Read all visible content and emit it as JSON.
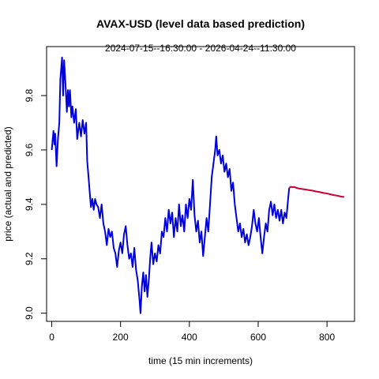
{
  "chart_data": {
    "type": "line",
    "title": "AVAX-USD (level data based prediction)",
    "subtitle": "2024-07-15--16:30:00  -  2026-04-24--11:30:00",
    "xlabel": "time (15 min increments)",
    "ylabel": "price (actual and predicted)",
    "xlim": [
      -15,
      880
    ],
    "ylim": [
      8.97,
      9.98
    ],
    "x_ticks": [
      0,
      200,
      400,
      600,
      800
    ],
    "y_ticks": [
      9.0,
      9.2,
      9.4,
      9.6,
      9.8
    ],
    "grid": false,
    "legend": "none",
    "series": [
      {
        "color": "#0000dd",
        "points": [
          [
            0,
            9.6
          ],
          [
            5,
            9.67
          ],
          [
            8,
            9.62
          ],
          [
            10,
            9.66
          ],
          [
            14,
            9.54
          ],
          [
            18,
            9.64
          ],
          [
            22,
            9.7
          ],
          [
            25,
            9.86
          ],
          [
            30,
            9.94
          ],
          [
            33,
            9.8
          ],
          [
            36,
            9.93
          ],
          [
            40,
            9.84
          ],
          [
            44,
            9.74
          ],
          [
            47,
            9.82
          ],
          [
            50,
            9.76
          ],
          [
            53,
            9.82
          ],
          [
            57,
            9.72
          ],
          [
            60,
            9.76
          ],
          [
            65,
            9.7
          ],
          [
            70,
            9.75
          ],
          [
            74,
            9.64
          ],
          [
            80,
            9.7
          ],
          [
            85,
            9.65
          ],
          [
            90,
            9.71
          ],
          [
            95,
            9.66
          ],
          [
            100,
            9.7
          ],
          [
            103,
            9.56
          ],
          [
            107,
            9.5
          ],
          [
            110,
            9.45
          ],
          [
            114,
            9.39
          ],
          [
            118,
            9.42
          ],
          [
            122,
            9.38
          ],
          [
            126,
            9.42
          ],
          [
            130,
            9.4
          ],
          [
            135,
            9.39
          ],
          [
            140,
            9.35
          ],
          [
            145,
            9.4
          ],
          [
            150,
            9.33
          ],
          [
            155,
            9.3
          ],
          [
            160,
            9.25
          ],
          [
            165,
            9.31
          ],
          [
            170,
            9.28
          ],
          [
            175,
            9.3
          ],
          [
            180,
            9.24
          ],
          [
            185,
            9.22
          ],
          [
            190,
            9.17
          ],
          [
            195,
            9.23
          ],
          [
            200,
            9.26
          ],
          [
            205,
            9.22
          ],
          [
            210,
            9.29
          ],
          [
            215,
            9.32
          ],
          [
            220,
            9.25
          ],
          [
            225,
            9.2
          ],
          [
            230,
            9.22
          ],
          [
            235,
            9.17
          ],
          [
            240,
            9.24
          ],
          [
            245,
            9.16
          ],
          [
            250,
            9.12
          ],
          [
            255,
            9.05
          ],
          [
            258,
            9.0
          ],
          [
            262,
            9.1
          ],
          [
            266,
            9.15
          ],
          [
            270,
            9.08
          ],
          [
            274,
            9.14
          ],
          [
            278,
            9.06
          ],
          [
            282,
            9.12
          ],
          [
            286,
            9.2
          ],
          [
            290,
            9.26
          ],
          [
            295,
            9.18
          ],
          [
            300,
            9.22
          ],
          [
            305,
            9.19
          ],
          [
            310,
            9.25
          ],
          [
            315,
            9.22
          ],
          [
            320,
            9.3
          ],
          [
            325,
            9.28
          ],
          [
            330,
            9.35
          ],
          [
            335,
            9.3
          ],
          [
            340,
            9.38
          ],
          [
            345,
            9.33
          ],
          [
            350,
            9.37
          ],
          [
            355,
            9.28
          ],
          [
            360,
            9.35
          ],
          [
            365,
            9.3
          ],
          [
            370,
            9.4
          ],
          [
            375,
            9.32
          ],
          [
            380,
            9.36
          ],
          [
            385,
            9.3
          ],
          [
            390,
            9.4
          ],
          [
            395,
            9.35
          ],
          [
            400,
            9.42
          ],
          [
            405,
            9.38
          ],
          [
            410,
            9.49
          ],
          [
            415,
            9.36
          ],
          [
            420,
            9.3
          ],
          [
            425,
            9.34
          ],
          [
            430,
            9.26
          ],
          [
            435,
            9.3
          ],
          [
            440,
            9.21
          ],
          [
            445,
            9.28
          ],
          [
            450,
            9.35
          ],
          [
            455,
            9.3
          ],
          [
            460,
            9.4
          ],
          [
            465,
            9.5
          ],
          [
            470,
            9.55
          ],
          [
            475,
            9.6
          ],
          [
            478,
            9.65
          ],
          [
            482,
            9.58
          ],
          [
            487,
            9.6
          ],
          [
            492,
            9.55
          ],
          [
            497,
            9.58
          ],
          [
            502,
            9.52
          ],
          [
            507,
            9.55
          ],
          [
            512,
            9.5
          ],
          [
            517,
            9.53
          ],
          [
            522,
            9.45
          ],
          [
            527,
            9.48
          ],
          [
            532,
            9.4
          ],
          [
            537,
            9.35
          ],
          [
            542,
            9.3
          ],
          [
            547,
            9.33
          ],
          [
            552,
            9.28
          ],
          [
            557,
            9.31
          ],
          [
            562,
            9.26
          ],
          [
            567,
            9.29
          ],
          [
            572,
            9.25
          ],
          [
            577,
            9.28
          ],
          [
            582,
            9.32
          ],
          [
            587,
            9.38
          ],
          [
            592,
            9.33
          ],
          [
            597,
            9.3
          ],
          [
            602,
            9.35
          ],
          [
            607,
            9.28
          ],
          [
            612,
            9.22
          ],
          [
            617,
            9.28
          ],
          [
            622,
            9.33
          ],
          [
            627,
            9.3
          ],
          [
            632,
            9.38
          ],
          [
            637,
            9.41
          ],
          [
            642,
            9.36
          ],
          [
            647,
            9.4
          ],
          [
            652,
            9.35
          ],
          [
            657,
            9.38
          ],
          [
            662,
            9.34
          ],
          [
            667,
            9.38
          ],
          [
            672,
            9.33
          ],
          [
            677,
            9.37
          ],
          [
            682,
            9.35
          ],
          [
            687,
            9.42
          ],
          [
            690,
            9.46
          ]
        ]
      },
      {
        "color": "#cc0033",
        "points": [
          [
            690,
            9.46
          ],
          [
            695,
            9.465
          ],
          [
            700,
            9.463
          ],
          [
            705,
            9.464
          ],
          [
            710,
            9.461
          ],
          [
            720,
            9.458
          ],
          [
            730,
            9.456
          ],
          [
            740,
            9.454
          ],
          [
            750,
            9.452
          ],
          [
            760,
            9.45
          ],
          [
            770,
            9.447
          ],
          [
            780,
            9.445
          ],
          [
            790,
            9.442
          ],
          [
            800,
            9.44
          ],
          [
            810,
            9.437
          ],
          [
            820,
            9.434
          ],
          [
            830,
            9.432
          ],
          [
            840,
            9.429
          ],
          [
            850,
            9.427
          ]
        ]
      }
    ]
  }
}
